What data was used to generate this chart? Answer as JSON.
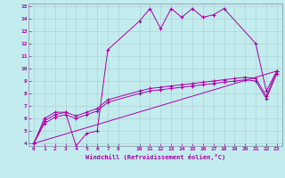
{
  "xlabel": "Windchill (Refroidissement éolien,°C)",
  "bg_color": "#c2ecee",
  "line_color": "#aa00aa",
  "grid_color": "#aacccc",
  "xlim": [
    -0.5,
    23.5
  ],
  "ylim": [
    3.8,
    15.2
  ],
  "xticks": [
    0,
    1,
    2,
    3,
    4,
    5,
    6,
    7,
    8,
    10,
    11,
    12,
    13,
    14,
    15,
    16,
    17,
    18,
    19,
    20,
    21,
    22,
    23
  ],
  "yticks": [
    4,
    5,
    6,
    7,
    8,
    9,
    10,
    11,
    12,
    13,
    14,
    15
  ],
  "series": [
    {
      "x": [
        0,
        1,
        2,
        3,
        4,
        5,
        6,
        7,
        10,
        11,
        12,
        13,
        14,
        15,
        16,
        17,
        18,
        21,
        22,
        23
      ],
      "y": [
        4.0,
        6.0,
        6.5,
        6.5,
        3.8,
        4.8,
        5.0,
        11.5,
        13.8,
        14.8,
        13.2,
        14.8,
        14.1,
        14.8,
        14.1,
        14.3,
        14.8,
        12.0,
        8.2,
        9.8
      ],
      "marker": "+"
    },
    {
      "x": [
        0,
        1,
        2,
        3,
        4,
        5,
        6,
        7,
        10,
        11,
        12,
        13,
        14,
        15,
        16,
        17,
        18,
        19,
        20,
        21,
        22,
        23
      ],
      "y": [
        4.0,
        5.8,
        6.3,
        6.5,
        6.2,
        6.5,
        6.8,
        7.5,
        8.2,
        8.4,
        8.5,
        8.6,
        8.7,
        8.8,
        8.9,
        9.0,
        9.1,
        9.2,
        9.3,
        9.2,
        7.8,
        9.8
      ],
      "marker": "+"
    },
    {
      "x": [
        0,
        1,
        2,
        3,
        4,
        5,
        6,
        7,
        10,
        11,
        12,
        13,
        14,
        15,
        16,
        17,
        18,
        19,
        20,
        21,
        22,
        23
      ],
      "y": [
        4.0,
        5.6,
        6.1,
        6.3,
        6.0,
        6.3,
        6.6,
        7.3,
        8.0,
        8.2,
        8.3,
        8.4,
        8.5,
        8.6,
        8.7,
        8.8,
        8.9,
        9.0,
        9.1,
        9.0,
        7.6,
        9.6
      ],
      "marker": "+"
    },
    {
      "x": [
        0,
        23
      ],
      "y": [
        4.0,
        9.8
      ],
      "marker": null
    }
  ]
}
